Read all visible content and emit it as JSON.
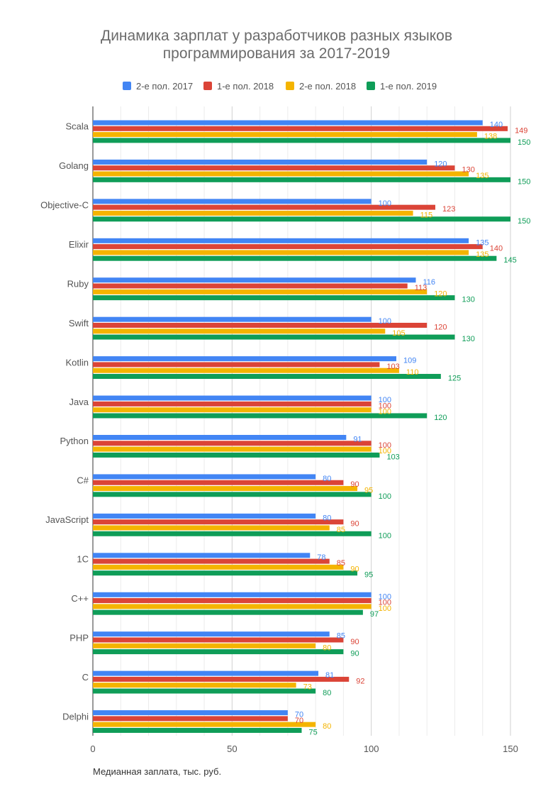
{
  "chart_data": {
    "type": "bar",
    "orientation": "horizontal",
    "title_lines": [
      "Динамика зарплат у разработчиков разных языков",
      "программирования за 2017-2019"
    ],
    "xlabel": "Медианная заплата, тыс. руб.",
    "ylabel": "",
    "xlim": [
      0,
      150
    ],
    "xticks": [
      0,
      50,
      100,
      150
    ],
    "grid": true,
    "legend_position": "top",
    "categories": [
      "Scala",
      "Golang",
      "Objective-C",
      "Elixir",
      "Ruby",
      "Swift",
      "Kotlin",
      "Java",
      "Python",
      "C#",
      "JavaScript",
      "1C",
      "C++",
      "PHP",
      "C",
      "Delphi"
    ],
    "series": [
      {
        "name": "2-е пол. 2017",
        "color": "#4285f4",
        "values": [
          140,
          120,
          100,
          135,
          116,
          100,
          109,
          100,
          91,
          80,
          80,
          78,
          100,
          85,
          81,
          70
        ]
      },
      {
        "name": "1-е пол. 2018",
        "color": "#db4437",
        "values": [
          149,
          130,
          123,
          140,
          113,
          120,
          103,
          100,
          100,
          90,
          90,
          85,
          100,
          90,
          92,
          70
        ]
      },
      {
        "name": "2-е пол. 2018",
        "color": "#f4b400",
        "values": [
          138,
          135,
          115,
          135,
          120,
          105,
          110,
          100,
          100,
          95,
          85,
          90,
          100,
          80,
          73,
          80
        ]
      },
      {
        "name": "1-е пол. 2019",
        "color": "#0f9d58",
        "values": [
          150,
          150,
          150,
          145,
          130,
          130,
          125,
          120,
          103,
          100,
          100,
          95,
          97,
          90,
          80,
          75
        ]
      }
    ]
  }
}
